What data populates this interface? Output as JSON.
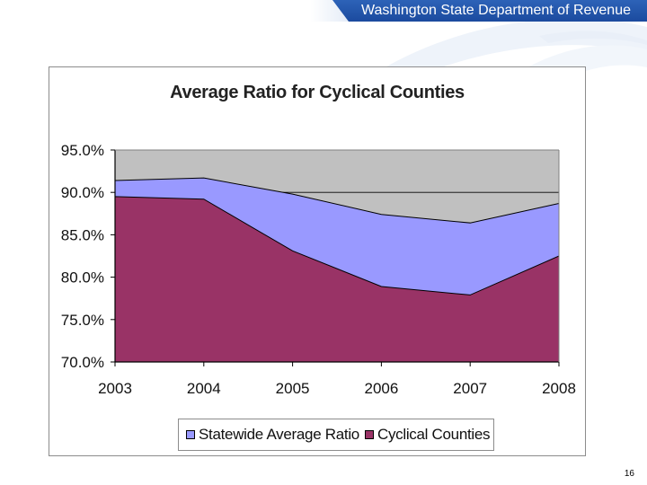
{
  "header": {
    "organization": "Washington State Department of Revenue"
  },
  "slide": {
    "page_number": "16"
  },
  "colors": {
    "statewide": "#9999ff",
    "cyclical": "#993366",
    "plot_background": "#c0c0c0",
    "header_blue": "#1d4ea3"
  },
  "chart_data": {
    "type": "area",
    "title": "Average Ratio for Cyclical Counties",
    "x": [
      "2003",
      "2004",
      "2005",
      "2006",
      "2007",
      "2008"
    ],
    "series": [
      {
        "name": "Statewide Average Ratio",
        "color": "#9999ff",
        "values": [
          91.4,
          91.7,
          89.8,
          87.4,
          86.4,
          88.7
        ]
      },
      {
        "name": "Cyclical Counties",
        "color": "#993366",
        "values": [
          89.5,
          89.2,
          83.1,
          78.9,
          77.9,
          82.5
        ]
      }
    ],
    "ylim": [
      70.0,
      95.0
    ],
    "y_ticks": [
      "70.0%",
      "75.0%",
      "80.0%",
      "85.0%",
      "90.0%",
      "95.0%"
    ],
    "y_tick_values": [
      70,
      75,
      80,
      85,
      90,
      95
    ],
    "xlabel": "",
    "ylabel": "",
    "grid": true,
    "legend_position": "bottom"
  }
}
